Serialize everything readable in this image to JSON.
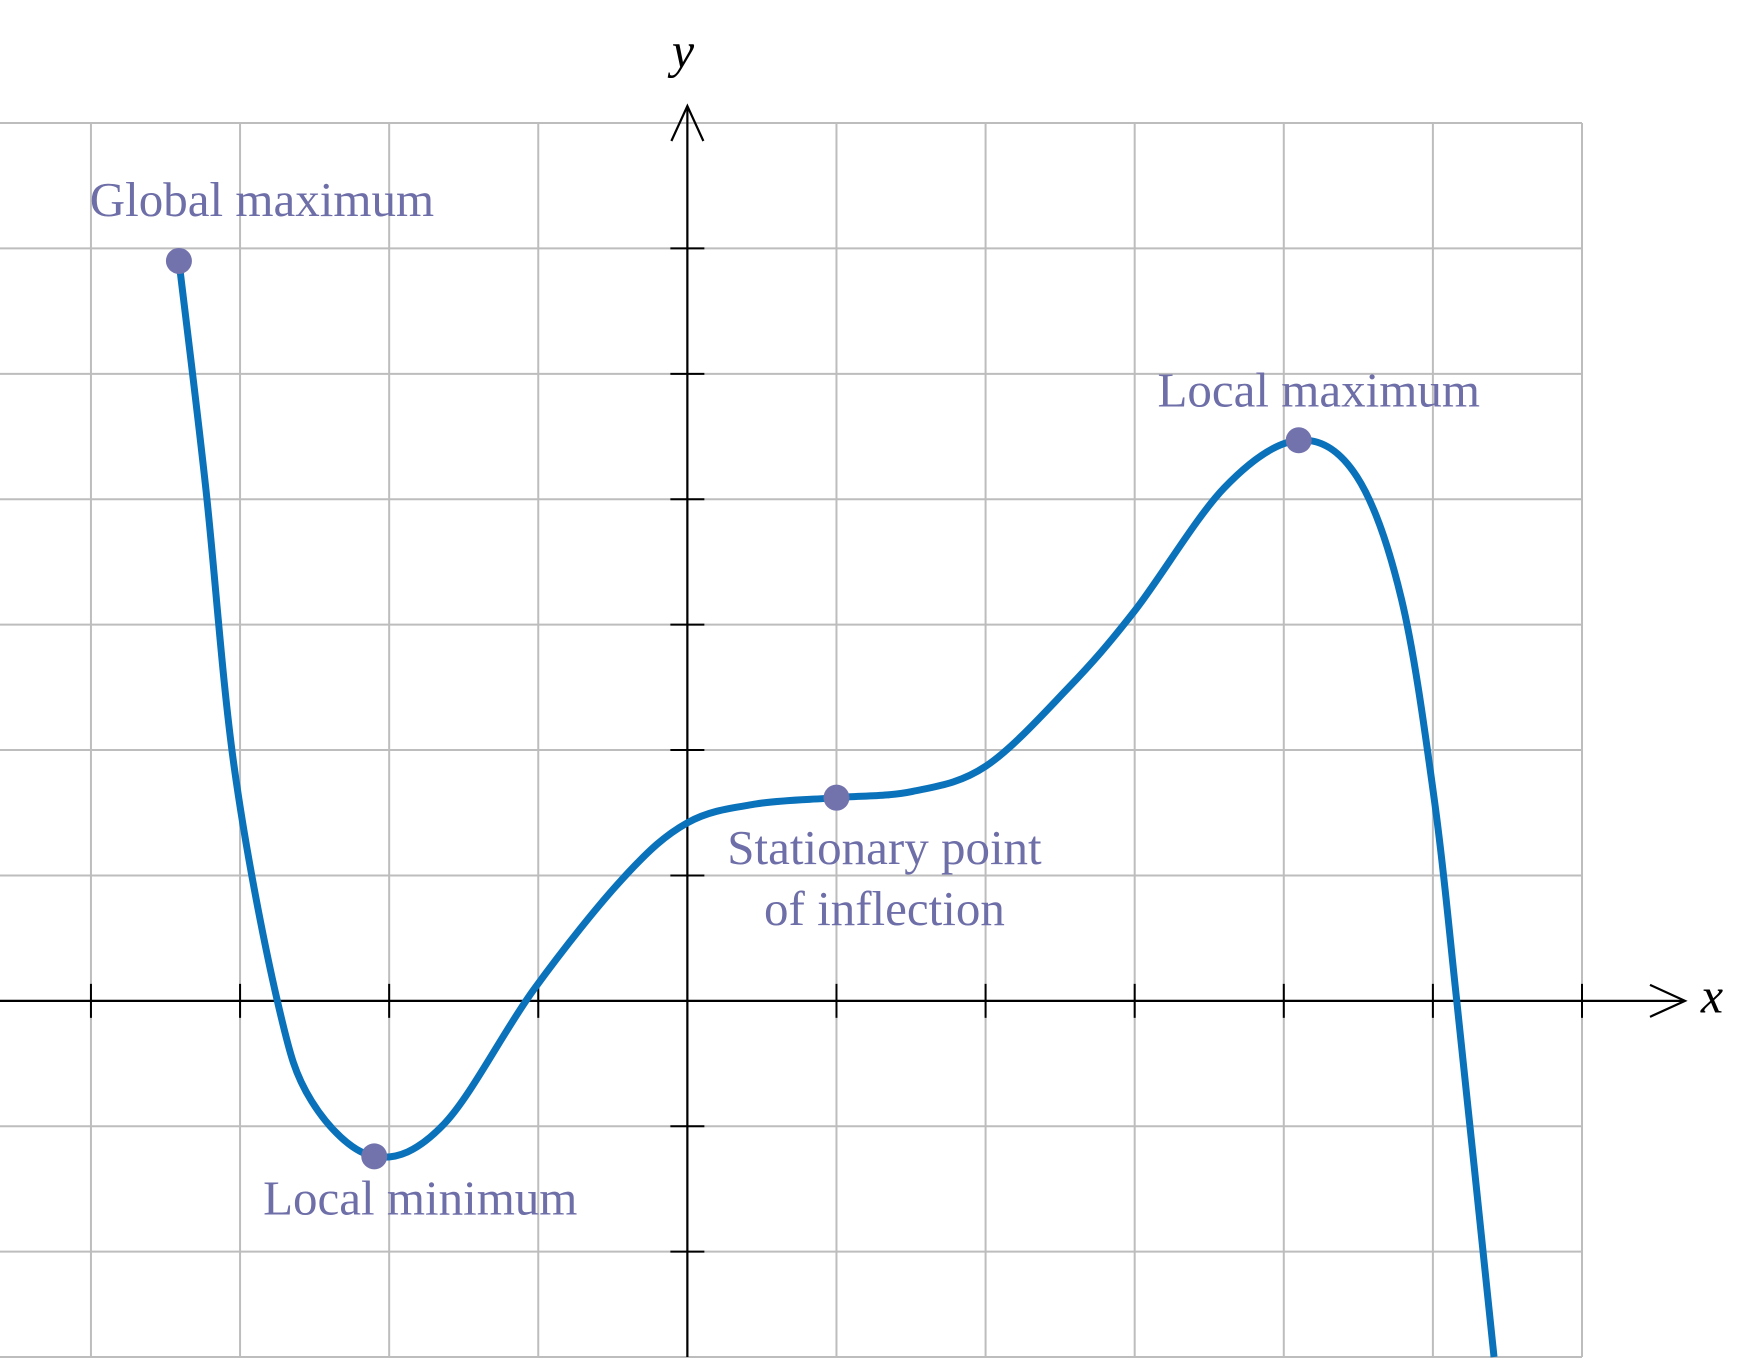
{
  "chart_data": {
    "type": "line",
    "x_label": "x",
    "y_label": "y",
    "xlim": [
      -4.61,
      6
    ],
    "ylim": [
      -2.84,
      7
    ],
    "xticks": [
      -4,
      -3,
      -2,
      -1,
      0,
      1,
      2,
      3,
      4,
      5,
      6
    ],
    "yticks": [
      -2,
      -1,
      0,
      1,
      2,
      3,
      4,
      5,
      6,
      7
    ],
    "grid": true,
    "series": [
      {
        "color": "#0a72ba",
        "x": [
          -3.41,
          -3.23,
          -3.04,
          -2.75,
          -2.52,
          -2.1,
          -1.63,
          -1.03,
          -0.43,
          0,
          0.46,
          1.0,
          1.51,
          2.0,
          2.55,
          3.0,
          3.6,
          4.1,
          4.49,
          4.79,
          5.01,
          5.16,
          5.41
        ],
        "values": [
          5.9,
          4.09,
          1.87,
          0,
          -0.8,
          -1.24,
          -0.98,
          0.09,
          0.98,
          1.42,
          1.57,
          1.62,
          1.67,
          1.87,
          2.49,
          3.11,
          4.09,
          4.47,
          4.18,
          3.2,
          1.6,
          0,
          -2.84
        ]
      }
    ],
    "annotations": [
      {
        "lines": [
          "Global maximum"
        ],
        "x": -3.41,
        "y": 5.9
      },
      {
        "lines": [
          "Local minimum"
        ],
        "x": -2.1,
        "y": -1.24
      },
      {
        "lines": [
          "Stationary point",
          "of inflection"
        ],
        "x": 1.0,
        "y": 1.62
      },
      {
        "lines": [
          "Local maximum"
        ],
        "x": 4.1,
        "y": 4.47
      }
    ],
    "marker_color": "#7272ad",
    "annotation_color": "#6e6ea8"
  }
}
